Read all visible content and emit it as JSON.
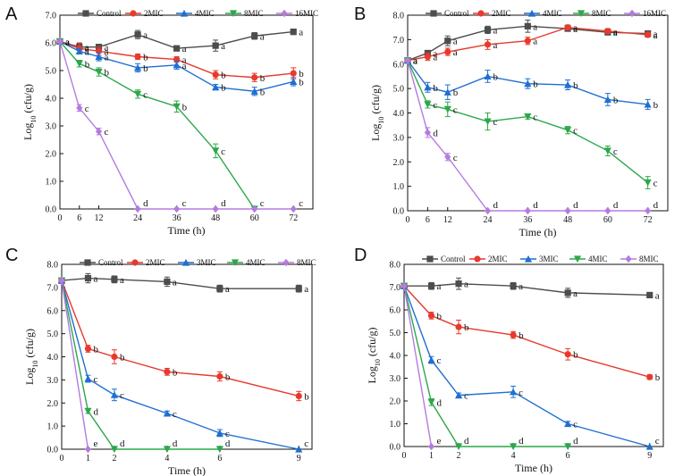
{
  "chart_data": [
    {
      "panel": "A",
      "type": "line",
      "xlabel": "Time (h)",
      "ylabel": "Log10 (cfu/g)",
      "ylabel_main": "Log",
      "ylabel_sub": "10",
      "ylabel_rest": " (cfu/g)",
      "x_ticks": [
        0,
        6,
        12,
        24,
        36,
        48,
        60,
        72
      ],
      "xlim": [
        0,
        78
      ],
      "ylim": [
        0,
        7.0
      ],
      "y_ticks": [
        0.0,
        1.0,
        2.0,
        3.0,
        4.0,
        5.0,
        6.0,
        7.0
      ],
      "y_tick_labels": [
        "0.0",
        "1.0",
        "2.0",
        "3.0",
        "4.0",
        "5.0",
        "6.0",
        "7.0"
      ],
      "series": [
        {
          "name": "Control",
          "color": "#4d4d4d",
          "marker": "square",
          "x": [
            0,
            6,
            12,
            24,
            36,
            48,
            60,
            72
          ],
          "values": [
            6.05,
            5.85,
            5.85,
            6.3,
            5.8,
            5.9,
            6.25,
            6.4
          ],
          "errors": [
            0.05,
            0.12,
            0.1,
            0.15,
            0.08,
            0.2,
            0.12,
            0.1
          ],
          "labels": [
            "a",
            "a",
            "a",
            "a",
            "a",
            "a",
            "a",
            "a"
          ]
        },
        {
          "name": "2MIC",
          "color": "#e8392c",
          "marker": "circle",
          "x": [
            0,
            6,
            12,
            24,
            36,
            48,
            60,
            72
          ],
          "values": [
            6.05,
            5.8,
            5.7,
            5.5,
            5.4,
            4.85,
            4.75,
            4.9
          ],
          "errors": [
            0.05,
            0.2,
            0.15,
            0.1,
            0.1,
            0.15,
            0.15,
            0.2
          ],
          "labels": [
            "a",
            "a",
            "a",
            "b",
            "a",
            "b",
            "b",
            "b"
          ]
        },
        {
          "name": "4MIC",
          "color": "#1f6fd1",
          "marker": "triangle",
          "x": [
            0,
            6,
            12,
            24,
            36,
            48,
            60,
            72
          ],
          "values": [
            6.05,
            5.7,
            5.5,
            5.1,
            5.2,
            4.4,
            4.25,
            4.6
          ],
          "errors": [
            0.05,
            0.1,
            0.15,
            0.15,
            0.15,
            0.1,
            0.15,
            0.15
          ],
          "labels": [
            "a",
            "a",
            "a",
            "b",
            "a",
            "b",
            "b",
            "b"
          ]
        },
        {
          "name": "8MIC",
          "color": "#2ca84a",
          "marker": "triangle-down",
          "x": [
            0,
            6,
            12,
            24,
            36,
            48,
            60,
            72
          ],
          "values": [
            6.05,
            5.25,
            4.95,
            4.15,
            3.7,
            2.1,
            0.0,
            null
          ],
          "errors": [
            0.05,
            0.12,
            0.15,
            0.15,
            0.2,
            0.25,
            0,
            0
          ],
          "labels": [
            "a",
            "b",
            "b",
            "c",
            "b",
            "c",
            "c",
            ""
          ]
        },
        {
          "name": "16MIC",
          "color": "#b57be0",
          "marker": "diamond",
          "x": [
            0,
            6,
            12,
            24,
            36,
            48,
            60,
            72
          ],
          "values": [
            6.05,
            3.65,
            2.8,
            0.0,
            0.0,
            0.0,
            0.0,
            0.0
          ],
          "errors": [
            0.05,
            0.12,
            0.12,
            0,
            0,
            0,
            0,
            0
          ],
          "labels": [
            "a",
            "c",
            "c",
            "d",
            "c",
            "d",
            "",
            "c"
          ]
        }
      ]
    },
    {
      "panel": "B",
      "type": "line",
      "xlabel": "Time (h)",
      "ylabel": "Log10 (cfu/g)",
      "ylabel_main": "Log",
      "ylabel_sub": "10",
      "ylabel_rest": " (cfu/g)",
      "x_ticks": [
        0,
        6,
        12,
        24,
        36,
        48,
        60,
        72
      ],
      "xlim": [
        0,
        78
      ],
      "ylim": [
        0,
        8.0
      ],
      "y_ticks": [
        0.0,
        1.0,
        2.0,
        3.0,
        4.0,
        5.0,
        6.0,
        7.0,
        8.0
      ],
      "y_tick_labels": [
        "0.0",
        "1.0",
        "2.0",
        "3.0",
        "4.0",
        "5.0",
        "6.0",
        "7.0",
        "8.0"
      ],
      "series": [
        {
          "name": "Control",
          "color": "#4d4d4d",
          "marker": "square",
          "x": [
            0,
            6,
            12,
            24,
            36,
            48,
            60,
            72
          ],
          "values": [
            6.15,
            6.45,
            6.95,
            7.4,
            7.55,
            7.45,
            7.3,
            7.25
          ],
          "errors": [
            0.05,
            0.1,
            0.2,
            0.15,
            0.25,
            0.1,
            0.1,
            0.1
          ],
          "labels": [
            "a",
            "a",
            "a",
            "a",
            "a",
            "a",
            "a",
            "a"
          ]
        },
        {
          "name": "2MIC",
          "color": "#e8392c",
          "marker": "circle",
          "x": [
            0,
            6,
            12,
            24,
            36,
            48,
            60,
            72
          ],
          "values": [
            6.15,
            6.3,
            6.5,
            6.8,
            6.95,
            7.5,
            7.35,
            7.2
          ],
          "errors": [
            0.05,
            0.15,
            0.15,
            0.2,
            0.15,
            0.1,
            0.1,
            0.1
          ],
          "labels": [
            "a",
            "a",
            "a",
            "a",
            "a",
            "a",
            "a",
            "a"
          ]
        },
        {
          "name": "4MIC",
          "color": "#1f6fd1",
          "marker": "triangle",
          "x": [
            0,
            6,
            12,
            24,
            36,
            48,
            60,
            72
          ],
          "values": [
            6.15,
            5.05,
            4.85,
            5.5,
            5.2,
            5.15,
            4.55,
            4.35
          ],
          "errors": [
            0.05,
            0.2,
            0.3,
            0.25,
            0.2,
            0.2,
            0.25,
            0.2
          ],
          "labels": [
            "a",
            "b",
            "b",
            "b",
            "b",
            "b",
            "b",
            "b"
          ]
        },
        {
          "name": "8MIC",
          "color": "#2ca84a",
          "marker": "triangle-down",
          "x": [
            0,
            6,
            12,
            24,
            36,
            48,
            60,
            72
          ],
          "values": [
            6.15,
            4.35,
            4.15,
            3.65,
            3.85,
            3.3,
            2.45,
            1.15
          ],
          "errors": [
            0.05,
            0.15,
            0.3,
            0.35,
            0.1,
            0.15,
            0.2,
            0.25
          ],
          "labels": [
            "a",
            "c",
            "c",
            "c",
            "c",
            "c",
            "c",
            "c"
          ]
        },
        {
          "name": "16MIC",
          "color": "#b57be0",
          "marker": "diamond",
          "x": [
            0,
            6,
            12,
            24,
            36,
            48,
            60,
            72
          ],
          "values": [
            6.15,
            3.2,
            2.2,
            0.0,
            0.0,
            0.0,
            0.0,
            0.0
          ],
          "errors": [
            0.05,
            0.2,
            0.15,
            0,
            0,
            0,
            0,
            0
          ],
          "labels": [
            "a",
            "d",
            "c",
            "d",
            "d",
            "d",
            "d",
            "d"
          ]
        }
      ]
    },
    {
      "panel": "C",
      "type": "line",
      "xlabel": "Time (h)",
      "ylabel": "Log10 (cfu/g)",
      "ylabel_main": "Log",
      "ylabel_sub": "10",
      "ylabel_rest": " (cfu/g)",
      "x_ticks": [
        0,
        1,
        2,
        4,
        6,
        9
      ],
      "xlim": [
        0,
        9.5
      ],
      "ylim": [
        0,
        8.0
      ],
      "y_ticks": [
        0.0,
        1.0,
        2.0,
        3.0,
        4.0,
        5.0,
        6.0,
        7.0,
        8.0
      ],
      "y_tick_labels": [
        "0.0",
        "1.0",
        "2.0",
        "3.0",
        "4.0",
        "5.0",
        "6.0",
        "7.0",
        "8.0"
      ],
      "series": [
        {
          "name": "Control",
          "color": "#4d4d4d",
          "marker": "square",
          "x": [
            0,
            1,
            2,
            4,
            6,
            9
          ],
          "values": [
            7.3,
            7.4,
            7.35,
            7.25,
            6.95,
            6.95
          ],
          "errors": [
            0.05,
            0.2,
            0.15,
            0.2,
            0.15,
            0.15
          ],
          "labels": [
            "",
            "a",
            "a",
            "a",
            "a",
            "a"
          ]
        },
        {
          "name": "2MIC",
          "color": "#e8392c",
          "marker": "circle",
          "x": [
            0,
            1,
            2,
            4,
            6,
            9
          ],
          "values": [
            7.3,
            4.35,
            4.0,
            3.35,
            3.15,
            2.3
          ],
          "errors": [
            0.05,
            0.15,
            0.3,
            0.15,
            0.2,
            0.2
          ],
          "labels": [
            "",
            "b",
            "b",
            "b",
            "b",
            "b"
          ]
        },
        {
          "name": "3MIC",
          "color": "#1f6fd1",
          "marker": "triangle",
          "x": [
            0,
            1,
            2,
            4,
            6,
            9
          ],
          "values": [
            7.3,
            3.05,
            2.35,
            1.55,
            0.7,
            0.0
          ],
          "errors": [
            0.05,
            0.15,
            0.25,
            0.1,
            0.15,
            0
          ],
          "labels": [
            "",
            "c",
            "c",
            "c",
            "c",
            "c"
          ]
        },
        {
          "name": "4MIC",
          "color": "#2ca84a",
          "marker": "triangle-down",
          "x": [
            0,
            1,
            2,
            4,
            6,
            9
          ],
          "values": [
            7.3,
            1.65,
            0.0,
            0.0,
            0.0,
            null
          ],
          "errors": [
            0.05,
            0.1,
            0,
            0,
            0,
            0
          ],
          "labels": [
            "",
            "d",
            "d",
            "d",
            "d",
            ""
          ]
        },
        {
          "name": "8MIC",
          "color": "#b57be0",
          "marker": "diamond",
          "x": [
            0,
            1,
            2,
            4,
            6,
            9
          ],
          "values": [
            7.3,
            0.0,
            null,
            null,
            null,
            null
          ],
          "errors": [
            0.05,
            0,
            0,
            0,
            0,
            0
          ],
          "labels": [
            "",
            "e",
            "",
            "",
            "",
            ""
          ]
        }
      ]
    },
    {
      "panel": "D",
      "type": "line",
      "xlabel": "Time (h)",
      "ylabel": "Log10 (cfu/g)",
      "ylabel_main": "Log",
      "ylabel_sub": "10",
      "ylabel_rest": " (cfu/g)",
      "x_ticks": [
        0,
        1,
        2,
        4,
        6,
        9
      ],
      "xlim": [
        0,
        9.5
      ],
      "ylim": [
        0,
        8.0
      ],
      "y_ticks": [
        0.0,
        1.0,
        2.0,
        3.0,
        4.0,
        5.0,
        6.0,
        7.0,
        8.0
      ],
      "y_tick_labels": [
        "0.0",
        "1.0",
        "2.0",
        "3.0",
        "4.0",
        "5.0",
        "6.0",
        "7.0",
        "8.0"
      ],
      "series": [
        {
          "name": "Control",
          "color": "#4d4d4d",
          "marker": "square",
          "x": [
            0,
            1,
            2,
            4,
            6,
            9
          ],
          "values": [
            7.05,
            7.05,
            7.15,
            7.05,
            6.75,
            6.65
          ],
          "errors": [
            0.05,
            0.15,
            0.25,
            0.15,
            0.2,
            0.1
          ],
          "labels": [
            "",
            "a",
            "a",
            "a",
            "a",
            "a"
          ]
        },
        {
          "name": "2MIC",
          "color": "#e8392c",
          "marker": "circle",
          "x": [
            0,
            1,
            2,
            4,
            6,
            9
          ],
          "values": [
            7.05,
            5.75,
            5.25,
            4.9,
            4.05,
            3.05
          ],
          "errors": [
            0.05,
            0.15,
            0.3,
            0.15,
            0.25,
            0.1
          ],
          "labels": [
            "",
            "b",
            "b",
            "b",
            "b",
            "b"
          ]
        },
        {
          "name": "3MIC",
          "color": "#1f6fd1",
          "marker": "triangle",
          "x": [
            0,
            1,
            2,
            4,
            6,
            9
          ],
          "values": [
            7.05,
            3.8,
            2.25,
            2.4,
            1.0,
            0.0
          ],
          "errors": [
            0.05,
            0.15,
            0.1,
            0.25,
            0.1,
            0
          ],
          "labels": [
            "",
            "c",
            "c",
            "c",
            "c",
            "c"
          ]
        },
        {
          "name": "4MIC",
          "color": "#2ca84a",
          "marker": "triangle-down",
          "x": [
            0,
            1,
            2,
            4,
            6,
            9
          ],
          "values": [
            7.05,
            1.95,
            0.0,
            0.0,
            0.0,
            null
          ],
          "errors": [
            0.05,
            0.15,
            0,
            0,
            0,
            0
          ],
          "labels": [
            "",
            "d",
            "d",
            "d",
            "d",
            ""
          ]
        },
        {
          "name": "8MIC",
          "color": "#b57be0",
          "marker": "diamond",
          "x": [
            0,
            1,
            2,
            4,
            6,
            9
          ],
          "values": [
            7.05,
            0.0,
            null,
            null,
            null,
            null
          ],
          "errors": [
            0.05,
            0,
            0,
            0,
            0,
            0
          ],
          "labels": [
            "",
            "e",
            "",
            "",
            "",
            ""
          ]
        }
      ]
    }
  ]
}
